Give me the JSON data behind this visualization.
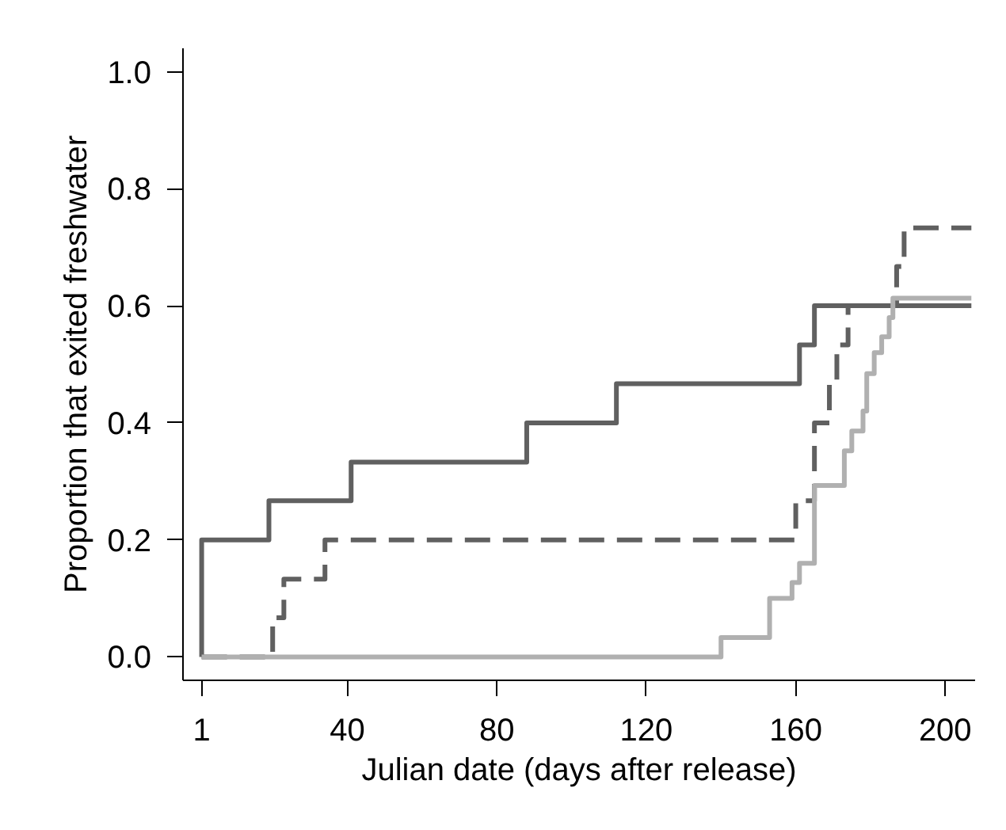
{
  "chart_data": {
    "type": "step",
    "xlabel": "Julian date (days after release)",
    "ylabel": "Proportion that exited freshwater",
    "xlim": [
      -4,
      208
    ],
    "ylim": [
      -0.04,
      1.04
    ],
    "xticks": [
      1,
      40,
      80,
      120,
      160,
      200
    ],
    "yticks": [
      {
        "value": 0,
        "label": "0.0"
      },
      {
        "value": 0.2,
        "label": "0.2"
      },
      {
        "value": 0.4,
        "label": "0.4"
      },
      {
        "value": 0.6,
        "label": "0.6"
      },
      {
        "value": 0.8,
        "label": "0.8"
      },
      {
        "value": 1,
        "label": "1.0"
      }
    ],
    "grid": false,
    "marker": "none",
    "series": [
      {
        "color": "#606060",
        "line_style": "solid",
        "x": [
          1,
          1,
          19,
          41,
          88,
          112,
          161,
          165,
          207
        ],
        "values": [
          0,
          0.2,
          0.267,
          0.333,
          0.4,
          0.467,
          0.533,
          0.6,
          0.6
        ]
      },
      {
        "color": "#606060",
        "line_style": "dashed",
        "x": [
          1,
          20,
          23,
          34,
          160,
          165,
          169,
          171,
          174,
          187,
          189,
          207
        ],
        "values": [
          0,
          0.067,
          0.133,
          0.2,
          0.267,
          0.4,
          0.467,
          0.533,
          0.6,
          0.667,
          0.733,
          0.733
        ]
      },
      {
        "color": "#b0b0b0",
        "line_style": "solid",
        "x": [
          1,
          140,
          153,
          159,
          161,
          165,
          173,
          175,
          178,
          179,
          181,
          183,
          185,
          186,
          207
        ],
        "values": [
          0,
          0.033,
          0.1,
          0.127,
          0.16,
          0.293,
          0.352,
          0.386,
          0.42,
          0.484,
          0.52,
          0.547,
          0.58,
          0.613,
          0.613
        ]
      }
    ]
  }
}
